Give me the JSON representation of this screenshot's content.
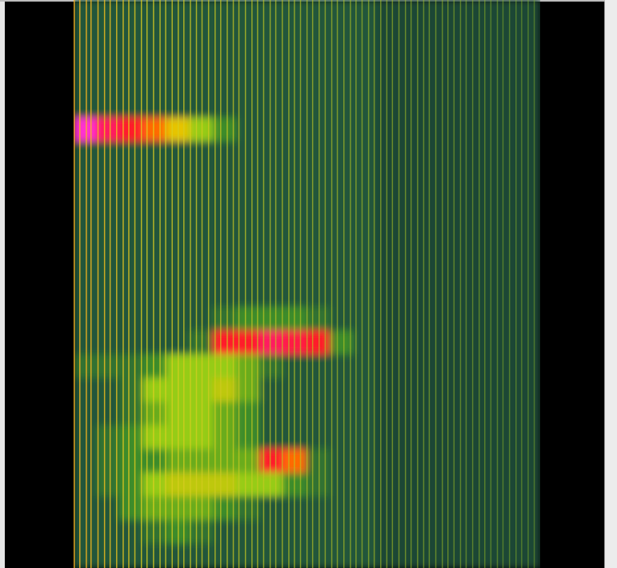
{
  "chart_data": {
    "type": "heatmap",
    "tick_labels": false,
    "xlim": [
      0,
      100
    ],
    "zlim": [
      0,
      10
    ],
    "cells": [
      [
        3,
        3,
        3,
        3,
        3,
        3,
        3,
        3,
        3,
        3,
        3,
        3,
        3,
        2.5,
        2.5,
        2.5,
        2.5,
        2.5,
        2.5,
        2.5
      ],
      [
        3,
        3,
        3,
        3,
        3,
        3,
        3,
        3,
        3,
        3,
        3,
        3,
        3,
        2.5,
        2.5,
        2.5,
        2.5,
        2.5,
        2.5,
        2.5
      ],
      [
        3,
        3,
        3,
        3,
        3,
        3,
        3,
        3,
        3,
        3,
        3,
        3,
        3,
        2.5,
        2.5,
        2.5,
        2.5,
        2.5,
        2.5,
        2.5
      ],
      [
        3,
        3,
        3,
        3,
        3,
        3,
        3,
        3,
        3,
        3,
        3,
        3,
        3,
        2.5,
        2.5,
        2.5,
        2.5,
        2.5,
        2.5,
        2.5
      ],
      [
        3,
        3,
        3,
        3,
        3,
        3,
        3,
        3,
        3,
        3,
        3,
        3,
        3,
        2.5,
        2.5,
        2.5,
        2.5,
        2.5,
        2.5,
        2.5
      ],
      [
        10,
        9,
        8,
        7,
        6,
        5,
        4,
        3,
        3,
        3,
        3,
        3,
        3,
        2.5,
        2.5,
        2.5,
        2.5,
        2.5,
        2.5,
        2.5
      ],
      [
        3,
        3,
        3,
        3,
        3,
        3,
        3,
        3,
        3,
        3,
        3,
        3,
        3,
        2.5,
        2.5,
        2.5,
        2.5,
        2.5,
        2.5,
        2.5
      ],
      [
        3,
        3,
        3,
        3,
        3,
        3,
        3,
        3,
        3,
        3,
        3,
        3,
        3,
        2.5,
        2.5,
        2.5,
        2.5,
        2.5,
        2.5,
        2.5
      ],
      [
        3,
        3,
        3,
        3,
        3,
        3,
        3,
        3,
        3,
        3,
        3,
        3,
        3,
        2.5,
        2.5,
        2.5,
        2.5,
        2.5,
        2.5,
        2.5
      ],
      [
        3,
        3,
        3,
        3,
        3,
        3,
        3,
        3,
        3,
        3,
        3,
        3,
        3,
        2.5,
        2.5,
        2.5,
        2.5,
        2.5,
        2.5,
        2.5
      ],
      [
        3,
        3,
        3,
        3,
        3,
        3,
        3,
        3,
        3,
        3,
        3,
        3,
        3,
        2.5,
        2.5,
        2.5,
        2.5,
        2.5,
        2.5,
        2.5
      ],
      [
        3,
        3,
        3,
        3,
        3,
        3,
        3,
        3,
        3,
        3,
        3,
        3,
        3,
        2.5,
        2.5,
        2.5,
        2.5,
        2.5,
        2.5,
        2.5
      ],
      [
        3,
        3,
        3,
        3,
        3,
        3,
        3,
        3,
        3,
        3,
        3,
        3,
        3,
        2.5,
        2.5,
        2.5,
        2.5,
        2.5,
        2.5,
        2.5
      ],
      [
        3,
        3,
        3,
        3,
        3,
        3,
        3.5,
        4,
        4,
        4,
        3.5,
        3,
        3,
        2.5,
        2.5,
        2.5,
        2.5,
        2.5,
        2.5,
        2.5
      ],
      [
        3,
        3,
        3,
        3,
        3,
        3.5,
        8,
        8,
        9,
        8.5,
        8,
        4,
        3,
        2.5,
        2.5,
        2.5,
        2.5,
        2.5,
        2.5,
        2.5
      ],
      [
        3.5,
        3.5,
        3.5,
        4,
        5,
        5,
        5,
        4.5,
        3.5,
        3,
        3,
        3,
        3,
        2.5,
        2.5,
        2.5,
        2.5,
        2.5,
        2.5,
        2.5
      ],
      [
        3,
        3,
        3.5,
        5,
        5,
        5,
        5.5,
        4.5,
        3,
        3,
        3,
        3,
        3,
        2.5,
        2.5,
        2.5,
        2.5,
        2.5,
        2.5,
        2.5
      ],
      [
        3,
        3,
        3.5,
        4.5,
        5,
        5,
        4.5,
        4,
        3,
        3,
        3,
        3,
        3,
        2.5,
        2.5,
        2.5,
        2.5,
        2.5,
        2.5,
        2.5
      ],
      [
        3,
        3.5,
        4,
        5,
        5,
        5,
        4.5,
        4,
        3,
        3,
        3,
        3,
        3,
        2.5,
        2.5,
        2.5,
        2.5,
        2.5,
        2.5,
        2.5
      ],
      [
        3,
        3.5,
        4,
        4,
        4.5,
        4.5,
        4.5,
        4.5,
        8,
        7,
        3.5,
        3,
        3,
        2.5,
        2.5,
        2.5,
        2.5,
        2.5,
        2.5,
        2.5
      ],
      [
        3,
        3.5,
        4,
        5,
        5.5,
        5.5,
        5.5,
        5,
        5,
        4,
        3.5,
        3,
        3,
        2.5,
        2.5,
        2.5,
        2.5,
        2.5,
        2.5,
        2.5
      ],
      [
        3,
        3,
        4,
        4.5,
        4.5,
        4.5,
        4,
        3.5,
        3,
        3,
        3,
        3,
        3,
        2.5,
        2.5,
        2.5,
        2.5,
        2.5,
        2.5,
        2.5
      ],
      [
        3,
        3,
        3,
        3.5,
        4,
        3.5,
        3,
        3,
        3,
        3,
        3,
        3,
        3,
        2.5,
        2.5,
        2.5,
        2.5,
        2.5,
        2.5,
        2.5
      ],
      [
        3,
        3,
        3,
        3,
        3,
        3,
        3,
        3,
        3,
        3,
        3,
        3,
        3,
        2.5,
        2.5,
        2.5,
        2.5,
        2.5,
        2.5,
        2.5
      ]
    ],
    "tones": [
      0,
      1.2,
      2.6,
      3.6,
      5.1,
      6.5,
      7.7,
      9.1,
      10.5,
      11.7,
      13.0,
      14.4,
      15.6,
      17.0,
      18.4,
      19.6,
      21.0,
      22.3,
      23.5,
      24.9,
      26.2,
      27.4,
      28.8,
      30.2,
      31.4,
      32.8,
      34.1,
      35.3,
      36.7,
      38.1,
      39.3,
      40.6,
      42.0,
      43.2,
      44.6,
      46.0,
      47.2,
      48.5,
      49.9,
      51.1,
      52.5,
      53.8,
      55.2,
      56.4,
      57.8,
      59.2,
      60.4,
      61.7,
      63.1,
      64.3,
      65.7,
      67.0,
      68.2,
      69.6,
      71.0,
      72.2,
      73.6,
      74.9,
      76.1,
      77.5,
      78.9,
      80.1,
      81.4,
      82.8,
      84.0,
      85.4,
      86.8,
      88.0,
      89.3,
      90.7,
      91.9,
      93.3,
      94.7,
      95.9,
      97.3,
      98.6
    ]
  }
}
